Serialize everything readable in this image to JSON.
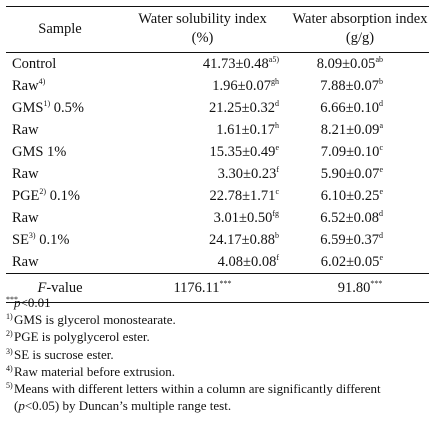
{
  "table": {
    "headers": {
      "sample": "Sample",
      "wsi_line1": "Water solubility index",
      "wsi_line2": "(%)",
      "wai_line1": "Water absorption index",
      "wai_line2": "(g/g)"
    },
    "rows": [
      {
        "sample": "Control",
        "sample_sup": "",
        "sample_suffix": "",
        "wsi": "41.73±0.48",
        "wsi_sup": "a5)",
        "wai": "8.09±0.05",
        "wai_sup": "ab"
      },
      {
        "sample": "Raw",
        "sample_sup": "4)",
        "sample_suffix": "",
        "wsi": "1.96±0.07",
        "wsi_sup": "gh",
        "wai": "7.88±0.07",
        "wai_sup": "b"
      },
      {
        "sample": "GMS",
        "sample_sup": "1)",
        "sample_suffix": " 0.5%",
        "wsi": "21.25±0.32",
        "wsi_sup": "d",
        "wai": "6.66±0.10",
        "wai_sup": "d"
      },
      {
        "sample": "Raw",
        "sample_sup": "",
        "sample_suffix": "",
        "wsi": "1.61±0.17",
        "wsi_sup": "h",
        "wai": "8.21±0.09",
        "wai_sup": "a"
      },
      {
        "sample": "GMS 1%",
        "sample_sup": "",
        "sample_suffix": "",
        "wsi": "15.35±0.49",
        "wsi_sup": "e",
        "wai": "7.09±0.10",
        "wai_sup": "c"
      },
      {
        "sample": "Raw",
        "sample_sup": "",
        "sample_suffix": "",
        "wsi": "3.30±0.23",
        "wsi_sup": "f",
        "wai": "5.90±0.07",
        "wai_sup": "e"
      },
      {
        "sample": "PGE",
        "sample_sup": "2)",
        "sample_suffix": " 0.1%",
        "wsi": "22.78±1.71",
        "wsi_sup": "c",
        "wai": "6.10±0.25",
        "wai_sup": "e"
      },
      {
        "sample": "Raw",
        "sample_sup": "",
        "sample_suffix": "",
        "wsi": "3.01±0.50",
        "wsi_sup": "fg",
        "wai": "6.52±0.08",
        "wai_sup": "d"
      },
      {
        "sample": "SE",
        "sample_sup": "3)",
        "sample_suffix": " 0.1%",
        "wsi": "24.17±0.88",
        "wsi_sup": "b",
        "wai": "6.59±0.37",
        "wai_sup": "d"
      },
      {
        "sample": "Raw",
        "sample_sup": "",
        "sample_suffix": "",
        "wsi": "4.08±0.08",
        "wsi_sup": "f",
        "wai": "6.02±0.05",
        "wai_sup": "e"
      }
    ],
    "fvalue": {
      "label_italic": "F",
      "label_rest": "-value",
      "wsi": "1176.11",
      "wsi_sup": "***",
      "wai": "91.80",
      "wai_sup": "***"
    }
  },
  "notes": {
    "sig": {
      "sup": "***",
      "italic": "p",
      "rest": "<0.01"
    },
    "n1": {
      "sup": "1)",
      "text": "GMS is glycerol monostearate."
    },
    "n2": {
      "sup": "2)",
      "text": "PGE is polyglycerol ester."
    },
    "n3": {
      "sup": "3)",
      "text": "SE is sucrose ester."
    },
    "n4": {
      "sup": "4)",
      "text": "Raw material before extrusion."
    },
    "n5": {
      "sup": "5)",
      "line1": "Means with different letters within a column are significantly different",
      "line2_open": "(",
      "line2_italic": "p",
      "line2_rest": "<0.05) by Duncan’s multiple range test."
    }
  }
}
